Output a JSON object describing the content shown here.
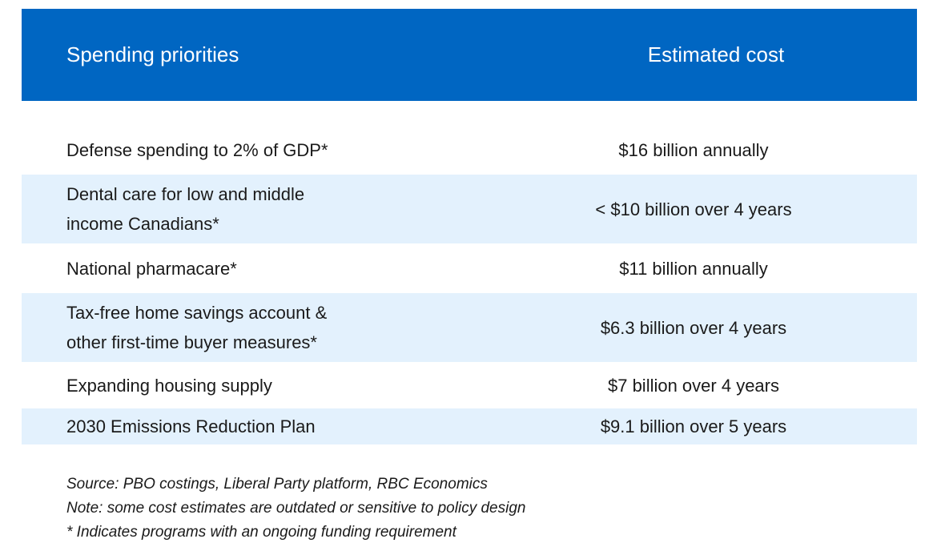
{
  "chart_data": {
    "type": "table",
    "columns": [
      "Spending priorities",
      "Estimated cost"
    ],
    "rows": [
      {
        "priority_lines": [
          "Defense spending to 2% of GDP*"
        ],
        "cost": "$16 billion annually"
      },
      {
        "priority_lines": [
          "Dental care for low and middle",
          "income Canadians*"
        ],
        "cost": "< $10 billion over 4 years"
      },
      {
        "priority_lines": [
          "National pharmacare*"
        ],
        "cost": "$11 billion annually"
      },
      {
        "priority_lines": [
          "Tax-free home savings account &",
          "other first-time buyer measures*"
        ],
        "cost": "$6.3 billion over 4 years"
      },
      {
        "priority_lines": [
          "Expanding housing supply"
        ],
        "cost": "$7 billion over 4 years"
      },
      {
        "priority_lines": [
          "2030 Emissions Reduction Plan"
        ],
        "cost": "$9.1 billion over 5 years"
      }
    ],
    "notes": [
      "Source: PBO costings, Liberal Party platform, RBC Economics",
      "Note: some cost estimates are outdated or sensitive to policy design",
      "* Indicates programs with an ongoing funding requirement"
    ]
  },
  "colors": {
    "header_background": "#0066c2",
    "header_text": "#ffffff",
    "shaded_row": "#e3f1fd"
  }
}
